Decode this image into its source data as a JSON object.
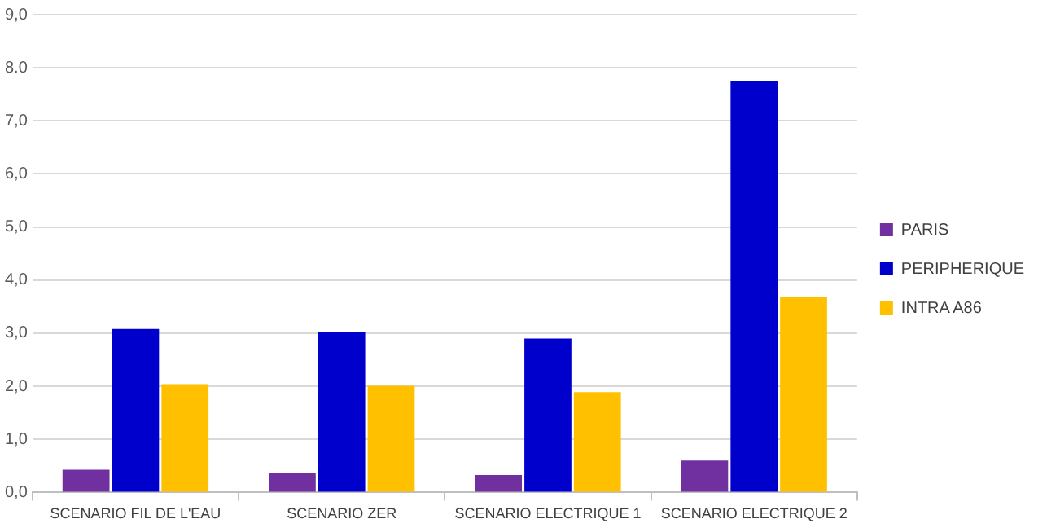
{
  "chart_data": {
    "type": "bar",
    "categories": [
      "SCENARIO FIL DE L'EAU",
      "SCENARIO ZER",
      "SCENARIO ELECTRIQUE 1",
      "SCENARIO ELECTRIQUE 2"
    ],
    "series": [
      {
        "name": "PARIS",
        "color": "#7030a0",
        "values": [
          0.43,
          0.37,
          0.33,
          0.6
        ]
      },
      {
        "name": "PERIPHERIQUE",
        "color": "#0000cc",
        "values": [
          3.08,
          3.02,
          2.9,
          7.74
        ]
      },
      {
        "name": "INTRA A86",
        "color": "#ffc000",
        "values": [
          2.04,
          2.01,
          1.89,
          3.69
        ]
      }
    ],
    "ylim": [
      0,
      9
    ],
    "yticks": [
      {
        "value": 0,
        "label": "0,0"
      },
      {
        "value": 1,
        "label": "1,0"
      },
      {
        "value": 2,
        "label": "2,0"
      },
      {
        "value": 3,
        "label": "3,0"
      },
      {
        "value": 4,
        "label": "4,0"
      },
      {
        "value": 5,
        "label": "5,0"
      },
      {
        "value": 6,
        "label": "6,0"
      },
      {
        "value": 7,
        "label": "7,0"
      },
      {
        "value": 8,
        "label": "8.0"
      },
      {
        "value": 9,
        "label": "9,0"
      }
    ],
    "grid": "y",
    "legend": "right"
  }
}
